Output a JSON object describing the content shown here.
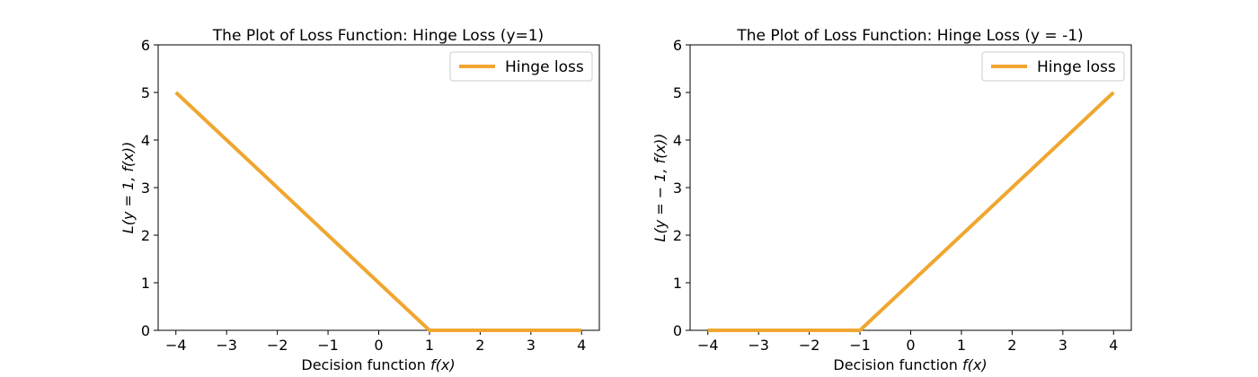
{
  "colors": {
    "line": "#f0a630",
    "legend_border": "#cccccc",
    "axis": "#000000"
  },
  "chart_data": [
    {
      "type": "line",
      "title": "The Plot of Loss Function: Hinge Loss (y=1)",
      "xlabel_text": "Decision function ",
      "xlabel_math": "f(x)",
      "ylabel": "L(y = 1, f(x))",
      "xlim": [
        -4.35,
        4.35
      ],
      "ylim": [
        0,
        6
      ],
      "x_ticks": [
        -4,
        -3,
        -2,
        -1,
        0,
        1,
        2,
        3,
        4
      ],
      "x_tick_labels": [
        "−4",
        "−3",
        "−2",
        "−1",
        "0",
        "1",
        "2",
        "3",
        "4"
      ],
      "y_ticks": [
        0,
        1,
        2,
        3,
        4,
        5,
        6
      ],
      "y_tick_labels": [
        "0",
        "1",
        "2",
        "3",
        "4",
        "5",
        "6"
      ],
      "legend_position": "top-right",
      "series": [
        {
          "name": "Hinge loss",
          "x": [
            -4,
            1,
            4
          ],
          "y": [
            5,
            0,
            0
          ]
        }
      ]
    },
    {
      "type": "line",
      "title": "The Plot of Loss Function: Hinge Loss (y = -1)",
      "xlabel_text": "Decision function ",
      "xlabel_math": "f(x)",
      "ylabel": "L(y = − 1, f(x))",
      "xlim": [
        -4.35,
        4.35
      ],
      "ylim": [
        0,
        6
      ],
      "x_ticks": [
        -4,
        -3,
        -2,
        -1,
        0,
        1,
        2,
        3,
        4
      ],
      "x_tick_labels": [
        "−4",
        "−3",
        "−2",
        "−1",
        "0",
        "1",
        "2",
        "3",
        "4"
      ],
      "y_ticks": [
        0,
        1,
        2,
        3,
        4,
        5,
        6
      ],
      "y_tick_labels": [
        "0",
        "1",
        "2",
        "3",
        "4",
        "5",
        "6"
      ],
      "legend_position": "top-right",
      "series": [
        {
          "name": "Hinge loss",
          "x": [
            -4,
            -1,
            4
          ],
          "y": [
            0,
            0,
            5
          ]
        }
      ]
    }
  ]
}
